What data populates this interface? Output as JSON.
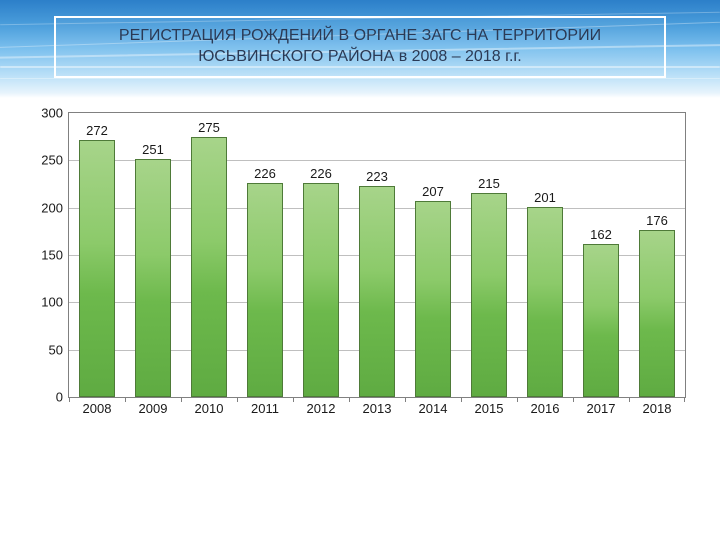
{
  "title": "РЕГИСТРАЦИЯ РОЖДЕНИЙ В ОРГАНЕ ЗАГС НА ТЕРРИТОРИИ ЮСЬВИНСКОГО РАЙОНА в 2008 – 2018 г.г.",
  "chart": {
    "type": "bar",
    "categories": [
      "2008",
      "2009",
      "2010",
      "2011",
      "2012",
      "2013",
      "2014",
      "2015",
      "2016",
      "2017",
      "2018"
    ],
    "values": [
      272,
      251,
      275,
      226,
      226,
      223,
      207,
      215,
      201,
      162,
      176
    ],
    "ymin": 0,
    "ymax": 300,
    "ystep": 50,
    "grid_color": "#bfbfbf",
    "border_color": "#808080",
    "bar_gradient_top": "#a7d48a",
    "bar_gradient_bottom": "#5fab42",
    "bar_border": "#4e7a38",
    "label_color": "#1a1a1a",
    "axis_fontsize": 13,
    "value_fontsize": 13
  },
  "banner": {
    "colors": [
      "#2c7fc9",
      "#4a9ddb",
      "#7cc0ee",
      "#b6def7",
      "#e8f4fc",
      "#ffffff"
    ],
    "title_border": "#ffffff",
    "title_color": "#2b3a55",
    "title_fontsize": 16
  }
}
